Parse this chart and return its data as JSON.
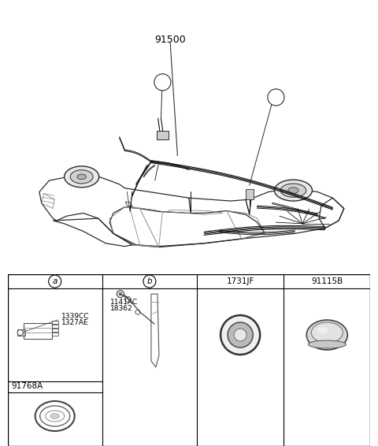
{
  "bg_color": "#ffffff",
  "border_color": "#000000",
  "text_color": "#000000",
  "main_label": "91500",
  "callout_a": "a",
  "callout_b": "b",
  "table_headers": [
    "a",
    "b",
    "1731JF",
    "91115B"
  ],
  "cell_a_labels": [
    "1339CC",
    "1327AE"
  ],
  "cell_b_labels": [
    "1141AC",
    "18362"
  ],
  "cell_bottom_label": "91768A"
}
